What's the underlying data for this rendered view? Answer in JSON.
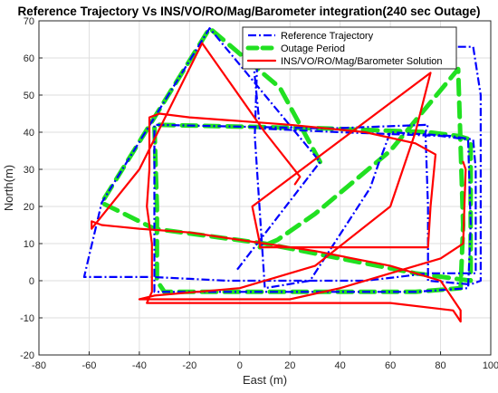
{
  "chart_data": {
    "type": "line",
    "title": "Reference Trajectory Vs INS/VO/RO/Mag/Barometer integration(240 sec Outage)",
    "xlabel": "East (m)",
    "ylabel": "North(m)",
    "xlim": [
      -80,
      100
    ],
    "ylim": [
      -20,
      70
    ],
    "xticks": [
      "-80",
      "-60",
      "-40",
      "-20",
      "0",
      "20",
      "40",
      "60",
      "80",
      "100"
    ],
    "yticks": [
      "-20",
      "-10",
      "0",
      "10",
      "20",
      "30",
      "40",
      "50",
      "60",
      "70"
    ],
    "grid": true,
    "legend_position": "top-right",
    "series": [
      {
        "name": "Reference Trajectory",
        "color": "#0000ff",
        "style": "dash-dot",
        "x": [
          -1,
          32,
          -12,
          -55,
          -62,
          -35,
          -20,
          -5,
          5,
          28,
          50,
          63,
          75,
          94,
          94,
          93,
          84,
          60,
          55,
          52,
          28,
          10,
          6,
          7,
          30,
          65,
          93,
          96,
          96,
          92,
          75,
          75,
          74,
          75,
          35,
          -34,
          -34,
          -34,
          -34,
          -30,
          -10,
          10,
          40,
          70,
          91,
          92,
          91,
          80,
          40,
          8,
          5,
          3
        ],
        "y": [
          3,
          32,
          68,
          21,
          1,
          1,
          0.5,
          0,
          0,
          0,
          0,
          1,
          2,
          2,
          30,
          38,
          39,
          40,
          31,
          25,
          0,
          -2,
          39,
          60,
          62,
          63,
          63,
          50,
          0,
          -1,
          0,
          20,
          40,
          42,
          41,
          42,
          20,
          0,
          -3,
          -3,
          -3,
          -3,
          -3,
          -3,
          -2,
          15,
          38,
          39,
          40,
          41,
          62,
          63
        ]
      },
      {
        "name": "Outage Period",
        "color": "#21e021",
        "style": "dash",
        "x": [
          32,
          16,
          -12,
          -55,
          -34,
          10,
          40,
          70,
          92,
          92,
          87,
          75,
          55,
          35,
          -34,
          -33,
          -33,
          -30,
          0,
          40,
          70,
          88,
          89,
          87,
          60,
          30,
          15,
          8
        ],
        "y": [
          32,
          52,
          68,
          21,
          14,
          10,
          6,
          2,
          0,
          38,
          39,
          40,
          40.5,
          41,
          42,
          20,
          0,
          -3,
          -3,
          -3,
          -3,
          -2,
          15,
          57,
          35,
          18,
          11,
          9
        ],
        "group_names": [],
        "notes": []
      },
      {
        "name": "INS/VO/RO/Mag/Barometer Solution",
        "color": "#ff0000",
        "style": "solid",
        "x": [
          22,
          24,
          10,
          -15,
          -40,
          -59,
          -59,
          -55,
          -40,
          -20,
          0,
          30,
          60,
          80,
          88,
          88,
          87,
          85,
          60,
          30,
          -37,
          -35,
          -35,
          -37,
          -36,
          -36,
          -32,
          -20,
          0,
          20,
          50,
          70,
          78,
          76,
          75,
          60,
          40,
          8,
          8,
          5,
          76,
          70,
          60,
          30,
          0,
          -34,
          -40,
          -20,
          0,
          20,
          40,
          60,
          80,
          89,
          90,
          89
        ],
        "y": [
          26,
          28,
          40,
          64,
          30,
          14,
          16,
          15,
          14,
          13,
          11,
          8,
          4,
          0,
          -8,
          -11,
          -10,
          -8,
          -6,
          -6,
          -6,
          -3,
          10,
          20,
          30,
          44,
          45,
          44,
          43,
          42,
          40,
          37,
          34,
          20,
          9,
          9,
          9,
          9,
          10,
          20,
          56,
          40,
          20,
          4,
          -2,
          -4,
          -5,
          -5,
          -5,
          -5,
          -2,
          2,
          6,
          10,
          30,
          32
        ]
      }
    ]
  }
}
